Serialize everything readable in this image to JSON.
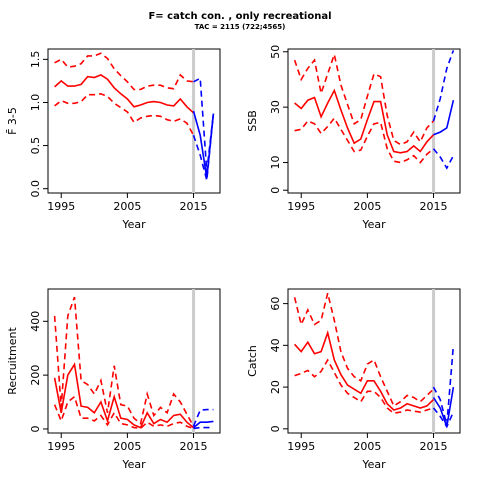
{
  "title": "F= catch con. , only recreational",
  "subtitle": "TAC = 2115 (722;4565)",
  "colors": {
    "historic": "#ff0000",
    "projection": "#0000ff",
    "refline": "#cccccc",
    "axis": "#000000"
  },
  "chart_data": [
    {
      "type": "line",
      "ylabel": "F̄ 3-5",
      "xlabel": "Year",
      "x_ticks": [
        1995,
        2005,
        2015
      ],
      "y_ticks": [
        "0.0",
        "0.5",
        "1.0",
        "1.5"
      ],
      "xlim": [
        1993,
        2019
      ],
      "ylim": [
        -0.05,
        1.62
      ],
      "vline": 2015,
      "historic_x": [
        1994,
        1995,
        1996,
        1997,
        1998,
        1999,
        2000,
        2001,
        2002,
        2003,
        2004,
        2005,
        2006,
        2007,
        2008,
        2009,
        2010,
        2011,
        2012,
        2013,
        2014,
        2015
      ],
      "historic": {
        "median": [
          1.18,
          1.25,
          1.19,
          1.19,
          1.21,
          1.3,
          1.29,
          1.32,
          1.27,
          1.17,
          1.1,
          1.04,
          0.95,
          0.97,
          1.0,
          1.01,
          1.0,
          0.97,
          0.96,
          1.04,
          0.95,
          0.88
        ],
        "upper": [
          1.46,
          1.5,
          1.41,
          1.42,
          1.45,
          1.54,
          1.54,
          1.57,
          1.51,
          1.39,
          1.31,
          1.24,
          1.15,
          1.15,
          1.19,
          1.2,
          1.2,
          1.17,
          1.16,
          1.32,
          1.25,
          1.24
        ],
        "lower": [
          0.96,
          1.02,
          0.99,
          0.99,
          1.01,
          1.09,
          1.09,
          1.1,
          1.07,
          0.99,
          0.94,
          0.89,
          0.77,
          0.82,
          0.84,
          0.85,
          0.84,
          0.8,
          0.78,
          0.81,
          0.76,
          0.62
        ]
      },
      "projection_x": [
        2015,
        2016,
        2017,
        2018
      ],
      "projection": {
        "median": [
          0.9,
          0.62,
          0.12,
          0.87
        ],
        "upper": [
          1.24,
          1.28,
          0.2,
          0.87
        ],
        "lower": [
          0.62,
          0.39,
          0.1,
          0.87
        ]
      }
    },
    {
      "type": "line",
      "ylabel": "SSB",
      "xlabel": "Year",
      "x_ticks": [
        1995,
        2005,
        2015
      ],
      "y_ticks": [
        "0",
        "10",
        "30",
        "50"
      ],
      "xlim": [
        1993,
        2019
      ],
      "ylim": [
        -1,
        51
      ],
      "vline": 2015,
      "historic_x": [
        1994,
        1995,
        1996,
        1997,
        1998,
        1999,
        2000,
        2001,
        2002,
        2003,
        2004,
        2005,
        2006,
        2007,
        2008,
        2009,
        2010,
        2011,
        2012,
        2013,
        2014,
        2015
      ],
      "historic": {
        "median": [
          31.5,
          29.5,
          32.5,
          33.5,
          26.5,
          31.5,
          36,
          29,
          22.5,
          17,
          18.5,
          25.5,
          32,
          32,
          20,
          14,
          13.5,
          14,
          16,
          14,
          17.5,
          20
        ],
        "upper": [
          47,
          40,
          44,
          47,
          35,
          42,
          49,
          38,
          31,
          24,
          25.5,
          34,
          42,
          41,
          27,
          18,
          16.5,
          17.5,
          21,
          17.5,
          22.5,
          25
        ],
        "lower": [
          21.5,
          22,
          25,
          24,
          20.5,
          23,
          26,
          22,
          18,
          14,
          14.5,
          19.5,
          24,
          24.5,
          15,
          10.5,
          10,
          11,
          12.5,
          10,
          13,
          15
        ]
      },
      "projection_x": [
        2015,
        2016,
        2017,
        2018
      ],
      "projection": {
        "median": [
          20,
          21,
          22.5,
          32.5
        ],
        "upper": [
          25,
          33,
          44,
          50.5
        ],
        "lower": [
          15,
          12,
          8,
          12.5
        ]
      }
    },
    {
      "type": "line",
      "ylabel": "Recruitment",
      "xlabel": "Year",
      "x_ticks": [
        1995,
        2005,
        2015
      ],
      "y_ticks": [
        "0",
        "200",
        "400"
      ],
      "xlim": [
        1993,
        2019
      ],
      "ylim": [
        -15,
        520
      ],
      "vline": 2015,
      "historic_x": [
        1994,
        1995,
        1996,
        1997,
        1998,
        1999,
        2000,
        2001,
        2002,
        2003,
        2004,
        2005,
        2006,
        2007,
        2008,
        2009,
        2010,
        2011,
        2012,
        2013,
        2014,
        2015
      ],
      "historic": {
        "median": [
          190,
          60,
          200,
          240,
          85,
          80,
          60,
          100,
          30,
          120,
          40,
          35,
          15,
          5,
          60,
          20,
          35,
          25,
          50,
          55,
          25,
          5
        ],
        "upper": [
          420,
          80,
          420,
          490,
          180,
          165,
          130,
          180,
          60,
          235,
          90,
          85,
          40,
          20,
          130,
          50,
          80,
          60,
          130,
          100,
          55,
          10
        ],
        "lower": [
          90,
          30,
          100,
          120,
          40,
          40,
          30,
          50,
          15,
          60,
          20,
          15,
          5,
          2,
          25,
          10,
          15,
          10,
          20,
          25,
          10,
          2
        ]
      },
      "projection_x": [
        2015,
        2016,
        2017,
        2018
      ],
      "projection": {
        "median": [
          5,
          25,
          25,
          28
        ],
        "upper": [
          10,
          70,
          72,
          72
        ],
        "lower": [
          2,
          5,
          5,
          5
        ]
      }
    },
    {
      "type": "line",
      "ylabel": "Catch",
      "xlabel": "Year",
      "x_ticks": [
        1995,
        2005,
        2015
      ],
      "y_ticks": [
        "0",
        "20",
        "40",
        "60"
      ],
      "xlim": [
        1993,
        2019
      ],
      "ylim": [
        -2,
        67
      ],
      "vline": 2015,
      "historic_x": [
        1994,
        1995,
        1996,
        1997,
        1998,
        1999,
        2000,
        2001,
        2002,
        2003,
        2004,
        2005,
        2006,
        2007,
        2008,
        2009,
        2010,
        2011,
        2012,
        2013,
        2014,
        2015
      ],
      "historic": {
        "median": [
          40.5,
          37,
          41.5,
          36,
          37,
          46,
          33,
          26,
          21,
          19,
          17,
          23,
          23,
          18,
          12,
          9,
          10,
          12,
          11,
          10,
          11,
          14
        ],
        "upper": [
          63,
          50,
          57,
          50,
          52,
          65,
          52,
          37,
          29,
          25,
          23,
          31,
          33,
          25,
          18,
          11,
          13,
          16,
          15,
          13,
          16,
          19
        ],
        "lower": [
          25.5,
          26.5,
          28,
          25,
          27.5,
          33,
          27,
          21,
          17,
          15,
          13,
          18,
          18,
          15,
          10,
          7.5,
          8,
          9,
          8.5,
          8,
          9,
          10
        ]
      },
      "projection_x": [
        2015,
        2016,
        2017,
        2018
      ],
      "projection": {
        "median": [
          15,
          10,
          1,
          20
        ],
        "upper": [
          20,
          14,
          2,
          40
        ],
        "lower": [
          10,
          6,
          1,
          8
        ]
      }
    }
  ]
}
